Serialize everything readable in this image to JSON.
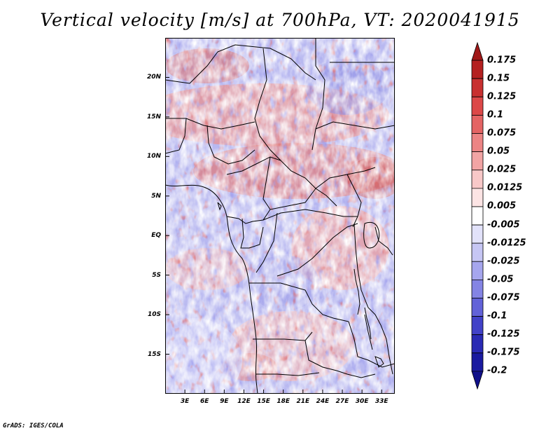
{
  "title": "Vertical velocity [m/s] at 700hPa, VT: 2020041915",
  "credit": "GrADS: IGES/COLA",
  "map": {
    "lon_range": [
      0,
      35
    ],
    "lat_range": [
      -20,
      25
    ],
    "lat_ticks": [
      {
        "value": 20,
        "label": "20N"
      },
      {
        "value": 15,
        "label": "15N"
      },
      {
        "value": 10,
        "label": "10N"
      },
      {
        "value": 5,
        "label": "5N"
      },
      {
        "value": 0,
        "label": "EQ"
      },
      {
        "value": -5,
        "label": "5S"
      },
      {
        "value": -10,
        "label": "10S"
      },
      {
        "value": -15,
        "label": "15S"
      }
    ],
    "lon_ticks": [
      {
        "value": 3,
        "label": "3E"
      },
      {
        "value": 6,
        "label": "6E"
      },
      {
        "value": 9,
        "label": "9E"
      },
      {
        "value": 12,
        "label": "12E"
      },
      {
        "value": 15,
        "label": "15E"
      },
      {
        "value": 18,
        "label": "18E"
      },
      {
        "value": 21,
        "label": "21E"
      },
      {
        "value": 24,
        "label": "24E"
      },
      {
        "value": 27,
        "label": "27E"
      },
      {
        "value": 30,
        "label": "30E"
      },
      {
        "value": 33,
        "label": "33E"
      }
    ]
  },
  "colorbar": {
    "levels": [
      "0.175",
      "0.15",
      "0.125",
      "0.1",
      "0.075",
      "0.05",
      "0.025",
      "0.0125",
      "0.005",
      "-0.005",
      "-0.0125",
      "-0.025",
      "-0.05",
      "-0.075",
      "-0.1",
      "-0.125",
      "-0.175",
      "-0.2"
    ],
    "colors": [
      "#a01818",
      "#b42020",
      "#c83030",
      "#dc4848",
      "#e46464",
      "#ec8484",
      "#f2a4a4",
      "#f8c8c8",
      "#fce4e4",
      "#ffffff",
      "#e2e2fa",
      "#c6c6f4",
      "#a6a6ee",
      "#8484e4",
      "#6262d8",
      "#4242c8",
      "#2a2ab4",
      "#1a1aa0",
      "#10108a"
    ]
  }
}
